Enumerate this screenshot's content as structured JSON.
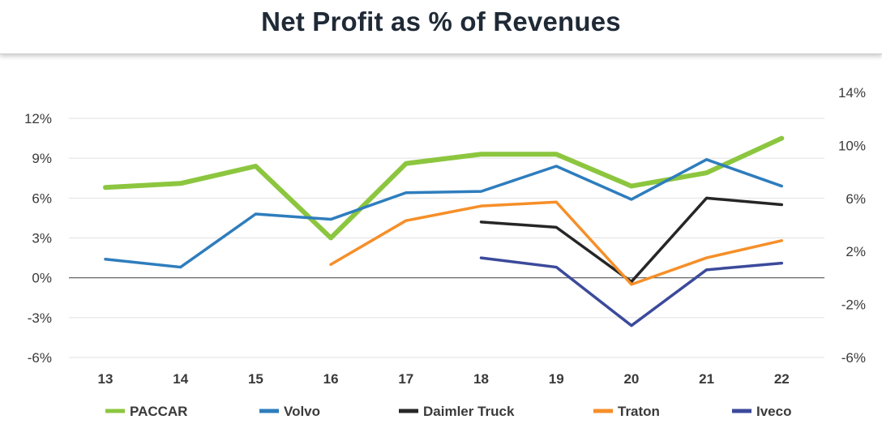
{
  "chart_data": {
    "type": "line",
    "title": "Net Profit as % of Revenues",
    "categories": [
      "13",
      "14",
      "15",
      "16",
      "17",
      "18",
      "19",
      "20",
      "21",
      "22"
    ],
    "y_left": {
      "ticks": [
        12,
        9,
        6,
        3,
        0,
        -3,
        -6
      ],
      "tick_labels": [
        "12%",
        "9%",
        "6%",
        "3%",
        "0%",
        "-3%",
        "-6%"
      ],
      "ylim": [
        -6,
        12
      ]
    },
    "y_right": {
      "ticks": [
        14,
        10,
        6,
        2,
        -2,
        -6
      ],
      "tick_labels": [
        "14%",
        "10%",
        "6%",
        "2%",
        "-2%",
        "-6%"
      ],
      "ylim": [
        -6,
        14
      ]
    },
    "grid": true,
    "legend_position": "bottom",
    "series": [
      {
        "name": "PACCAR",
        "color": "#8cc63f",
        "width": 6,
        "values": [
          6.8,
          7.1,
          8.4,
          3.0,
          8.6,
          9.3,
          9.3,
          6.9,
          7.9,
          10.5
        ]
      },
      {
        "name": "Volvo",
        "color": "#2e7dbd",
        "width": 3.5,
        "values": [
          1.4,
          0.8,
          4.8,
          4.4,
          6.4,
          6.5,
          8.4,
          5.9,
          8.9,
          6.9
        ]
      },
      {
        "name": "Daimler Truck",
        "color": "#262626",
        "width": 3.5,
        "values": [
          null,
          null,
          null,
          null,
          null,
          4.2,
          3.8,
          -0.3,
          6.0,
          5.5
        ]
      },
      {
        "name": "Traton",
        "color": "#f58f29",
        "width": 3.5,
        "values": [
          null,
          null,
          null,
          1.0,
          4.3,
          5.4,
          5.7,
          -0.5,
          1.5,
          2.8
        ]
      },
      {
        "name": "Iveco",
        "color": "#3b4a9b",
        "width": 3.5,
        "values": [
          null,
          null,
          null,
          null,
          null,
          1.5,
          0.8,
          -3.6,
          0.6,
          1.1
        ]
      }
    ]
  }
}
